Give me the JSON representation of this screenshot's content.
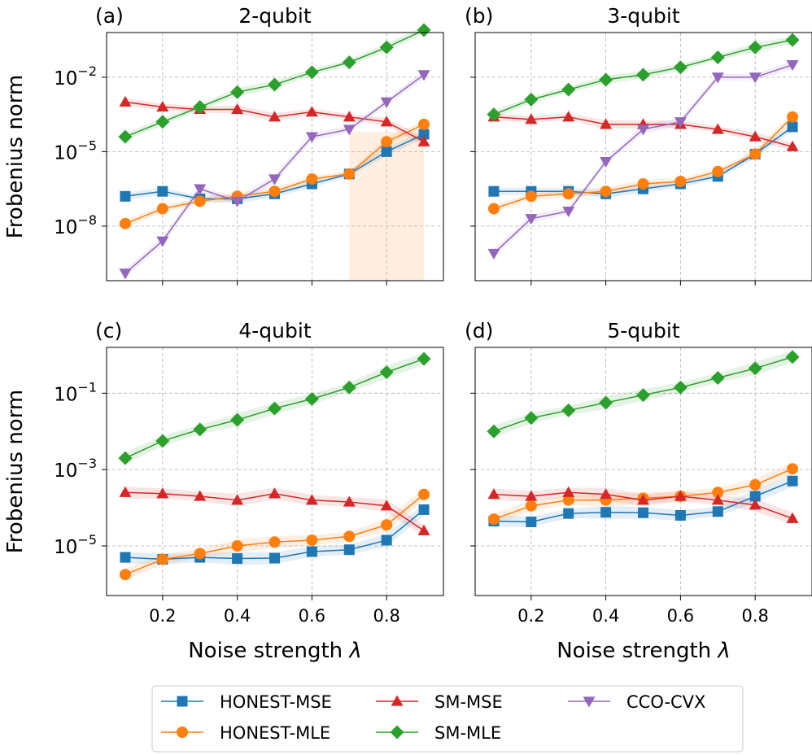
{
  "figure": {
    "xlabel_prefix": "Noise strength ",
    "xlabel_symbol": "λ",
    "ylabel": "Frobenius norm"
  },
  "legend": [
    {
      "name": "HONEST-MSE",
      "color": "#1f77b4",
      "marker": "square"
    },
    {
      "name": "HONEST-MLE",
      "color": "#ff7f0e",
      "marker": "circle"
    },
    {
      "name": "SM-MSE",
      "color": "#d62728",
      "marker": "triangle-up"
    },
    {
      "name": "SM-MLE",
      "color": "#2ca02c",
      "marker": "diamond"
    },
    {
      "name": "CCO-CVX",
      "color": "#9467bd",
      "marker": "triangle-down"
    }
  ],
  "chart_data": [
    {
      "type": "line",
      "panel_label": "(a)",
      "title": "2-qubit",
      "xlabel": "Noise strength λ",
      "ylabel": "Frobenius norm",
      "yscale": "log",
      "ylim_log10": [
        -10.2,
        -0.2
      ],
      "xlim": [
        0.05,
        0.95
      ],
      "ytick_exponents": [
        -8,
        -5,
        -2
      ],
      "xticks": [
        "0.2",
        "0.4",
        "0.6",
        "0.8"
      ],
      "grid": true,
      "x": [
        0.1,
        0.2,
        0.3,
        0.4,
        0.5,
        0.6,
        0.7,
        0.8,
        0.9
      ],
      "series": [
        {
          "name": "HONEST-MSE",
          "log10_values": [
            -6.8,
            -6.6,
            -6.9,
            -6.9,
            -6.7,
            -6.3,
            -5.9,
            -5.0,
            -4.3
          ]
        },
        {
          "name": "HONEST-MLE",
          "log10_values": [
            -7.9,
            -7.3,
            -7.0,
            -6.8,
            -6.6,
            -6.1,
            -5.9,
            -4.6,
            -3.9
          ]
        },
        {
          "name": "SM-MSE",
          "log10_values": [
            -3.0,
            -3.2,
            -3.3,
            -3.3,
            -3.6,
            -3.4,
            -3.6,
            -3.8,
            -4.6
          ]
        },
        {
          "name": "SM-MLE",
          "log10_values": [
            -4.4,
            -3.8,
            -3.2,
            -2.6,
            -2.3,
            -1.8,
            -1.4,
            -0.8,
            -0.1
          ]
        },
        {
          "name": "CCO-CVX",
          "log10_values": [
            -9.9,
            -8.6,
            -6.5,
            -7.0,
            -6.1,
            -4.4,
            -4.1,
            -3.0,
            -1.9
          ]
        }
      ]
    },
    {
      "type": "line",
      "panel_label": "(b)",
      "title": "3-qubit",
      "xlabel": "Noise strength λ",
      "ylabel": "Frobenius norm",
      "yscale": "log",
      "ylim_log10": [
        -10.2,
        -0.2
      ],
      "xlim": [
        0.05,
        0.95
      ],
      "ytick_exponents": [
        -8,
        -5,
        -2
      ],
      "xticks": [
        "0.2",
        "0.4",
        "0.6",
        "0.8"
      ],
      "grid": true,
      "x": [
        0.1,
        0.2,
        0.3,
        0.4,
        0.5,
        0.6,
        0.7,
        0.8,
        0.9
      ],
      "series": [
        {
          "name": "HONEST-MSE",
          "log10_values": [
            -6.6,
            -6.6,
            -6.6,
            -6.7,
            -6.5,
            -6.3,
            -6.0,
            -5.1,
            -4.0
          ]
        },
        {
          "name": "HONEST-MLE",
          "log10_values": [
            -7.3,
            -6.8,
            -6.7,
            -6.6,
            -6.3,
            -6.2,
            -5.8,
            -5.1,
            -3.6
          ]
        },
        {
          "name": "SM-MSE",
          "log10_values": [
            -3.6,
            -3.7,
            -3.6,
            -3.9,
            -3.9,
            -3.9,
            -4.1,
            -4.4,
            -4.8
          ]
        },
        {
          "name": "SM-MLE",
          "log10_values": [
            -3.5,
            -2.9,
            -2.5,
            -2.1,
            -1.9,
            -1.6,
            -1.2,
            -0.8,
            -0.5
          ]
        },
        {
          "name": "CCO-CVX",
          "log10_values": [
            -9.1,
            -7.7,
            -7.4,
            -5.4,
            -4.1,
            -3.8,
            -2.0,
            -2.0,
            -1.5
          ]
        }
      ]
    },
    {
      "type": "line",
      "panel_label": "(c)",
      "title": "4-qubit",
      "xlabel": "Noise strength λ",
      "ylabel": "Frobenius norm",
      "yscale": "log",
      "ylim_log10": [
        -6.3,
        0.2
      ],
      "xlim": [
        0.05,
        0.95
      ],
      "ytick_exponents": [
        -5,
        -3,
        -1
      ],
      "xticks": [
        "0.2",
        "0.4",
        "0.6",
        "0.8"
      ],
      "grid": true,
      "x": [
        0.1,
        0.2,
        0.3,
        0.4,
        0.5,
        0.6,
        0.7,
        0.8,
        0.9
      ],
      "series": [
        {
          "name": "HONEST-MSE",
          "log10_values": [
            -5.3,
            -5.35,
            -5.3,
            -5.33,
            -5.32,
            -5.15,
            -5.1,
            -4.85,
            -4.05
          ]
        },
        {
          "name": "HONEST-MLE",
          "log10_values": [
            -5.75,
            -5.35,
            -5.2,
            -5.0,
            -4.9,
            -4.85,
            -4.75,
            -4.45,
            -3.65
          ]
        },
        {
          "name": "SM-MSE",
          "log10_values": [
            -3.6,
            -3.63,
            -3.7,
            -3.8,
            -3.63,
            -3.8,
            -3.85,
            -3.95,
            -4.6
          ]
        },
        {
          "name": "SM-MLE",
          "log10_values": [
            -2.7,
            -2.25,
            -1.95,
            -1.7,
            -1.4,
            -1.15,
            -0.85,
            -0.45,
            -0.1
          ]
        }
      ]
    },
    {
      "type": "line",
      "panel_label": "(d)",
      "title": "5-qubit",
      "xlabel": "Noise strength λ",
      "ylabel": "Frobenius norm",
      "yscale": "log",
      "ylim_log10": [
        -6.3,
        0.2
      ],
      "xlim": [
        0.05,
        0.95
      ],
      "ytick_exponents": [
        -5,
        -3,
        -1
      ],
      "xticks": [
        "0.2",
        "0.4",
        "0.6",
        "0.8"
      ],
      "grid": true,
      "x": [
        0.1,
        0.2,
        0.3,
        0.4,
        0.5,
        0.6,
        0.7,
        0.8,
        0.9
      ],
      "series": [
        {
          "name": "HONEST-MSE",
          "log10_values": [
            -4.35,
            -4.37,
            -4.15,
            -4.12,
            -4.13,
            -4.2,
            -4.1,
            -3.7,
            -3.3
          ]
        },
        {
          "name": "HONEST-MLE",
          "log10_values": [
            -4.3,
            -3.95,
            -3.8,
            -3.8,
            -3.75,
            -3.7,
            -3.6,
            -3.4,
            -2.98
          ]
        },
        {
          "name": "SM-MSE",
          "log10_values": [
            -3.65,
            -3.7,
            -3.6,
            -3.65,
            -3.8,
            -3.7,
            -3.8,
            -3.93,
            -4.28
          ]
        },
        {
          "name": "SM-MLE",
          "log10_values": [
            -2.0,
            -1.65,
            -1.45,
            -1.25,
            -1.05,
            -0.85,
            -0.6,
            -0.35,
            -0.05
          ]
        }
      ]
    }
  ]
}
